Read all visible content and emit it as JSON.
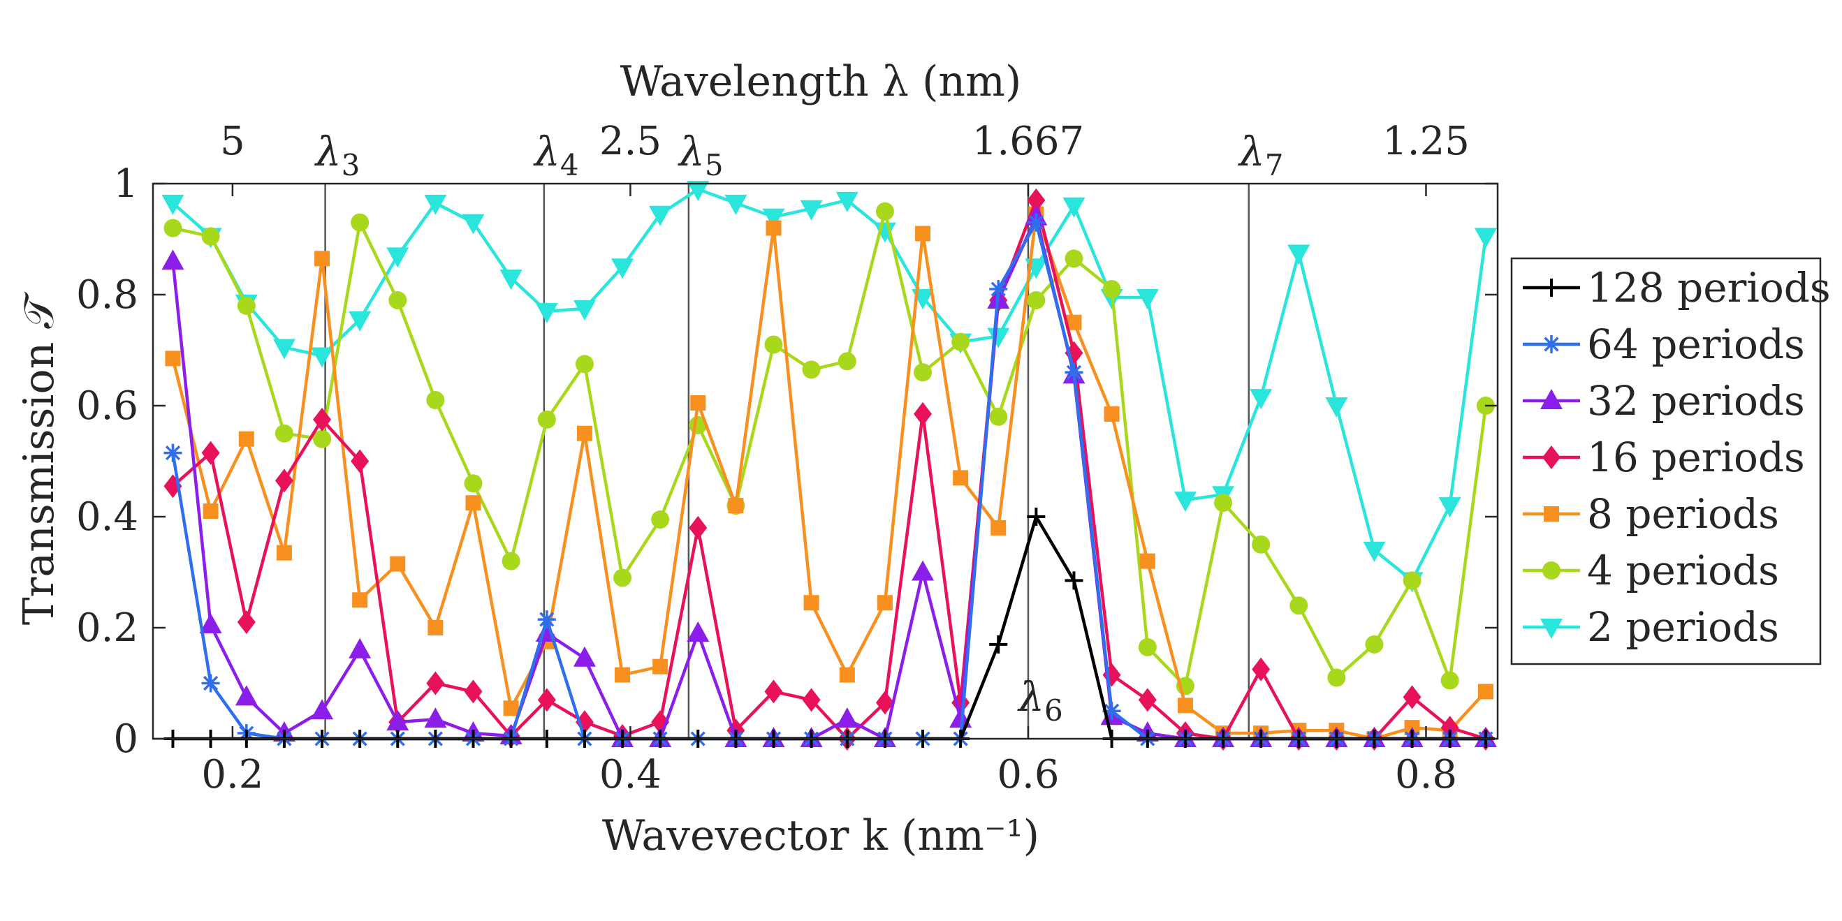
{
  "chart_data": {
    "type": "line",
    "xlabel": "Wavevector k (nm⁻¹)",
    "ylabel": "Transmission 𝒯",
    "top_axis_label": "Wavelength λ (nm)",
    "xlim": [
      0.16,
      0.836
    ],
    "ylim": [
      0,
      1
    ],
    "x_ticks": [
      0.2,
      0.4,
      0.6,
      0.8
    ],
    "x_tick_labels": [
      "0.2",
      "0.4",
      "0.6",
      "0.8"
    ],
    "y_ticks": [
      0,
      0.2,
      0.4,
      0.6,
      0.8,
      1
    ],
    "y_tick_labels": [
      "0",
      "0.2",
      "0.4",
      "0.6",
      "0.8",
      "1"
    ],
    "top_ticks": [
      {
        "k": 0.2,
        "label": "5"
      },
      {
        "k": 0.4,
        "label": "2.5"
      },
      {
        "k": 0.6,
        "label": "1.667"
      },
      {
        "k": 0.8,
        "label": "1.25"
      }
    ],
    "vertical_markers": [
      {
        "k": 0.2466,
        "label": "λ",
        "sub": "3",
        "label_position": "top"
      },
      {
        "k": 0.3566,
        "label": "λ",
        "sub": "4",
        "label_position": "top"
      },
      {
        "k": 0.4293,
        "label": "λ",
        "sub": "5",
        "label_position": "top"
      },
      {
        "k": 0.6,
        "label": "λ",
        "sub": "6",
        "label_position": "bottom"
      },
      {
        "k": 0.7109,
        "label": "λ",
        "sub": "7",
        "label_position": "top"
      }
    ],
    "legend_position": "right",
    "grid": false,
    "x": [
      0.17,
      0.189,
      0.207,
      0.226,
      0.245,
      0.264,
      0.283,
      0.302,
      0.321,
      0.34,
      0.358,
      0.377,
      0.396,
      0.415,
      0.434,
      0.453,
      0.472,
      0.491,
      0.509,
      0.528,
      0.547,
      0.566,
      0.585,
      0.604,
      0.623,
      0.642,
      0.66,
      0.679,
      0.698,
      0.717,
      0.736,
      0.755,
      0.774,
      0.793,
      0.812,
      0.83
    ],
    "series": [
      {
        "name": "128 periods",
        "color": "#000000",
        "marker": "plus",
        "values": [
          0,
          0,
          0,
          0,
          0,
          0,
          0,
          0,
          0,
          0,
          0,
          0,
          0,
          0,
          0,
          0,
          0,
          0,
          0,
          0,
          0,
          0,
          0.17,
          0.4,
          0.285,
          0,
          0,
          0,
          0,
          0,
          0,
          0,
          0,
          0,
          0,
          0
        ]
      },
      {
        "name": "64 periods",
        "color": "#2f6fed",
        "marker": "asterisk",
        "values": [
          0.515,
          0.1,
          0.01,
          0,
          0,
          0,
          0,
          0,
          0,
          0,
          0.215,
          0,
          0,
          0,
          0,
          0,
          0,
          0,
          0,
          0,
          0,
          0,
          0.81,
          0.93,
          0.66,
          0.05,
          0,
          0,
          0,
          0,
          0,
          0,
          0,
          0,
          0,
          0
        ]
      },
      {
        "name": "32 periods",
        "color": "#8b1ee8",
        "marker": "triangle-up",
        "values": [
          0.86,
          0.205,
          0.075,
          0.01,
          0.05,
          0.16,
          0.03,
          0.035,
          0.01,
          0.005,
          0.19,
          0.145,
          0,
          0,
          0.19,
          0,
          0,
          0,
          0.035,
          0,
          0.3,
          0.035,
          0.79,
          0.94,
          0.655,
          0.04,
          0.01,
          0,
          0,
          0,
          0,
          0,
          0,
          0,
          0,
          0
        ]
      },
      {
        "name": "16 periods",
        "color": "#e8125a",
        "marker": "diamond",
        "values": [
          0.455,
          0.515,
          0.21,
          0.465,
          0.575,
          0.5,
          0.03,
          0.1,
          0.085,
          0.005,
          0.07,
          0.03,
          0.005,
          0.03,
          0.38,
          0.015,
          0.085,
          0.07,
          0,
          0.065,
          0.585,
          0.065,
          0.79,
          0.97,
          0.695,
          0.115,
          0.07,
          0.01,
          0,
          0.125,
          0,
          0,
          0,
          0.075,
          0.02,
          0
        ]
      },
      {
        "name": "8 periods",
        "color": "#f7901e",
        "marker": "square",
        "values": [
          0.685,
          0.41,
          0.54,
          0.335,
          0.865,
          0.25,
          0.315,
          0.2,
          0.425,
          0.055,
          0.175,
          0.55,
          0.115,
          0.13,
          0.605,
          0.42,
          0.92,
          0.245,
          0.115,
          0.245,
          0.91,
          0.47,
          0.38,
          0.945,
          0.75,
          0.585,
          0.32,
          0.06,
          0.01,
          0.01,
          0.015,
          0.015,
          0,
          0.02,
          0.015,
          0.085
        ]
      },
      {
        "name": "4 periods",
        "color": "#a8d81c",
        "marker": "circle",
        "values": [
          0.92,
          0.905,
          0.78,
          0.55,
          0.54,
          0.93,
          0.79,
          0.61,
          0.46,
          0.32,
          0.575,
          0.675,
          0.29,
          0.395,
          0.565,
          0.42,
          0.71,
          0.665,
          0.68,
          0.95,
          0.66,
          0.715,
          0.58,
          0.79,
          0.865,
          0.81,
          0.165,
          0.095,
          0.425,
          0.35,
          0.24,
          0.11,
          0.17,
          0.285,
          0.105,
          0.6
        ]
      },
      {
        "name": "2 periods",
        "color": "#29e5dc",
        "marker": "triangle-down",
        "values": [
          0.965,
          0.905,
          0.785,
          0.705,
          0.69,
          0.755,
          0.87,
          0.965,
          0.93,
          0.83,
          0.77,
          0.775,
          0.85,
          0.945,
          0.99,
          0.965,
          0.94,
          0.955,
          0.97,
          0.915,
          0.795,
          0.715,
          0.725,
          0.85,
          0.96,
          0.795,
          0.795,
          0.43,
          0.44,
          0.615,
          0.875,
          0.6,
          0.34,
          0.285,
          0.42,
          0.905
        ]
      }
    ]
  }
}
